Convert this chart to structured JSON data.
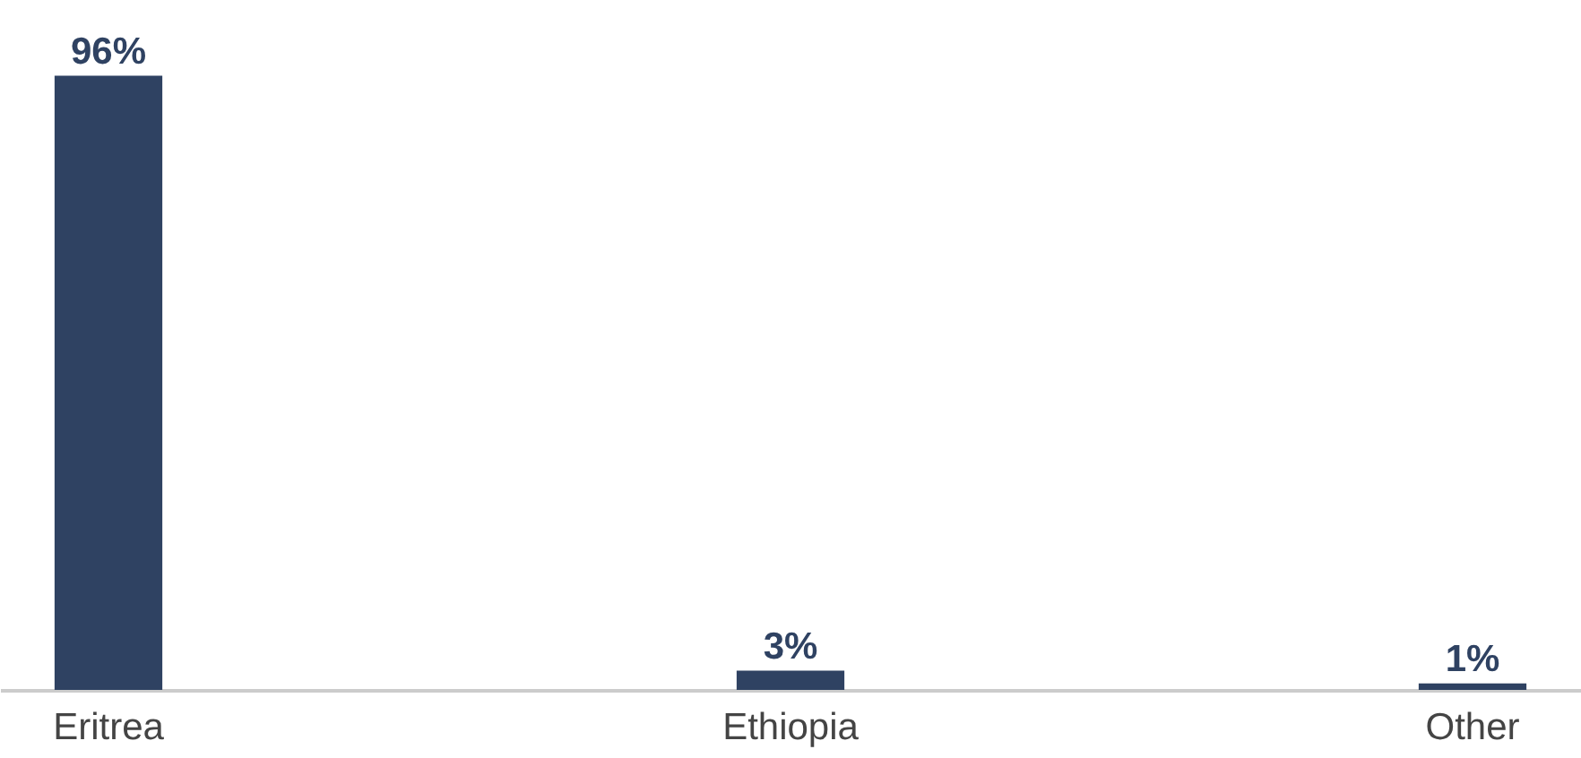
{
  "chart_data": {
    "type": "bar",
    "categories": [
      "Eritrea",
      "Ethiopia",
      "Other"
    ],
    "values": [
      96,
      3,
      1
    ],
    "value_labels": [
      "96%",
      "3%",
      "1%"
    ],
    "color": "#2f4262",
    "grid": false
  }
}
